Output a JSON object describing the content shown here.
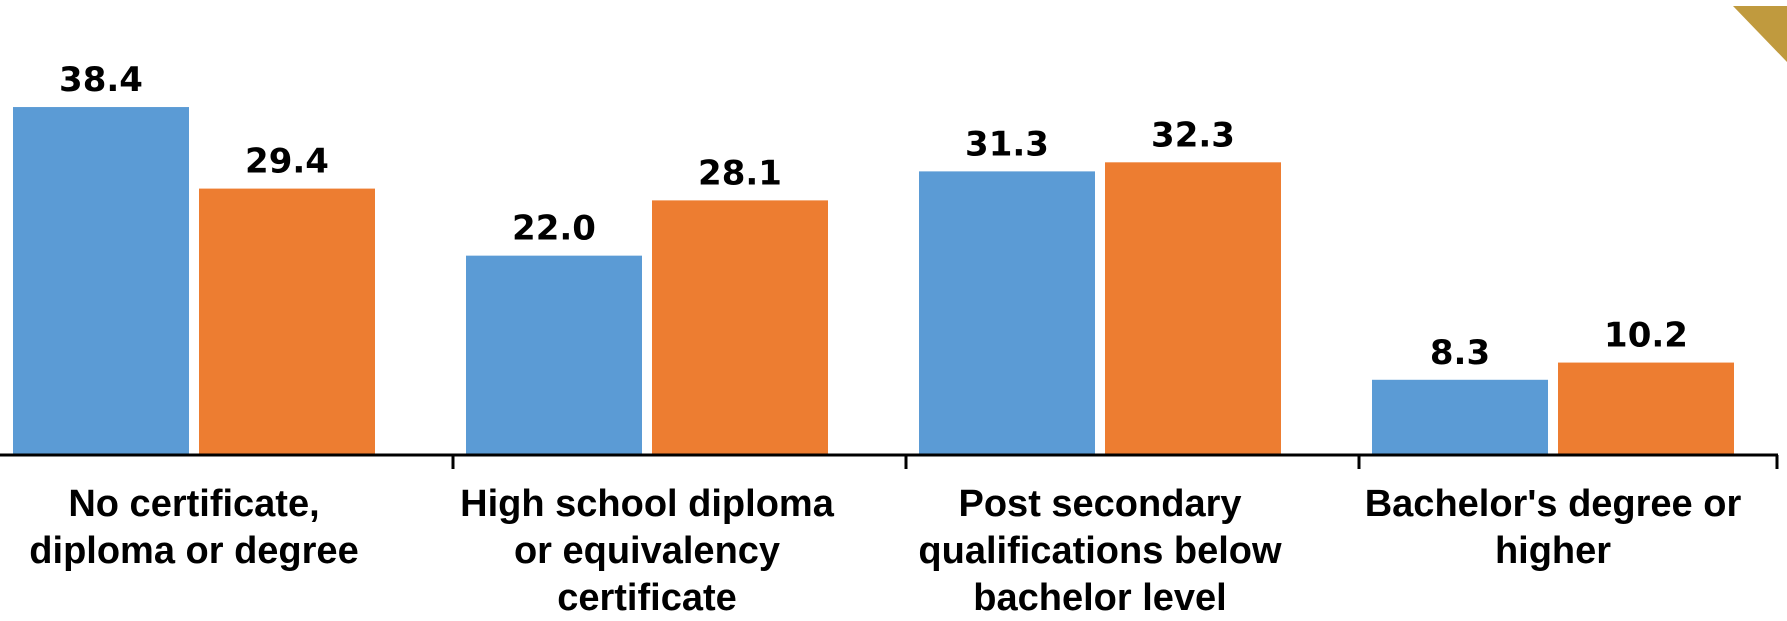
{
  "chart_data": {
    "type": "bar",
    "categories": [
      [
        "No certificate,",
        "diploma or degree"
      ],
      [
        "High school diploma",
        "or equivalency",
        "certificate"
      ],
      [
        "Post secondary",
        "qualifications below",
        "bachelor level"
      ],
      [
        "Bachelor's degree or",
        "higher"
      ]
    ],
    "series": [
      {
        "color": "#5B9BD5",
        "values": [
          38.4,
          22.0,
          31.3,
          8.3
        ],
        "labels": [
          "38.4",
          "22.0",
          "31.3",
          "8.3"
        ]
      },
      {
        "color": "#ED7D31",
        "values": [
          29.4,
          28.1,
          32.3,
          10.2
        ],
        "labels": [
          "29.4",
          "28.1",
          "32.3",
          "10.2"
        ]
      }
    ],
    "title": "",
    "xlabel": "",
    "ylabel": "",
    "ylim": [
      0,
      44
    ],
    "grid": false,
    "legend": "none",
    "data_labels": true,
    "axis_color": "#000000",
    "corner_accent_color": "#C09A3E"
  }
}
